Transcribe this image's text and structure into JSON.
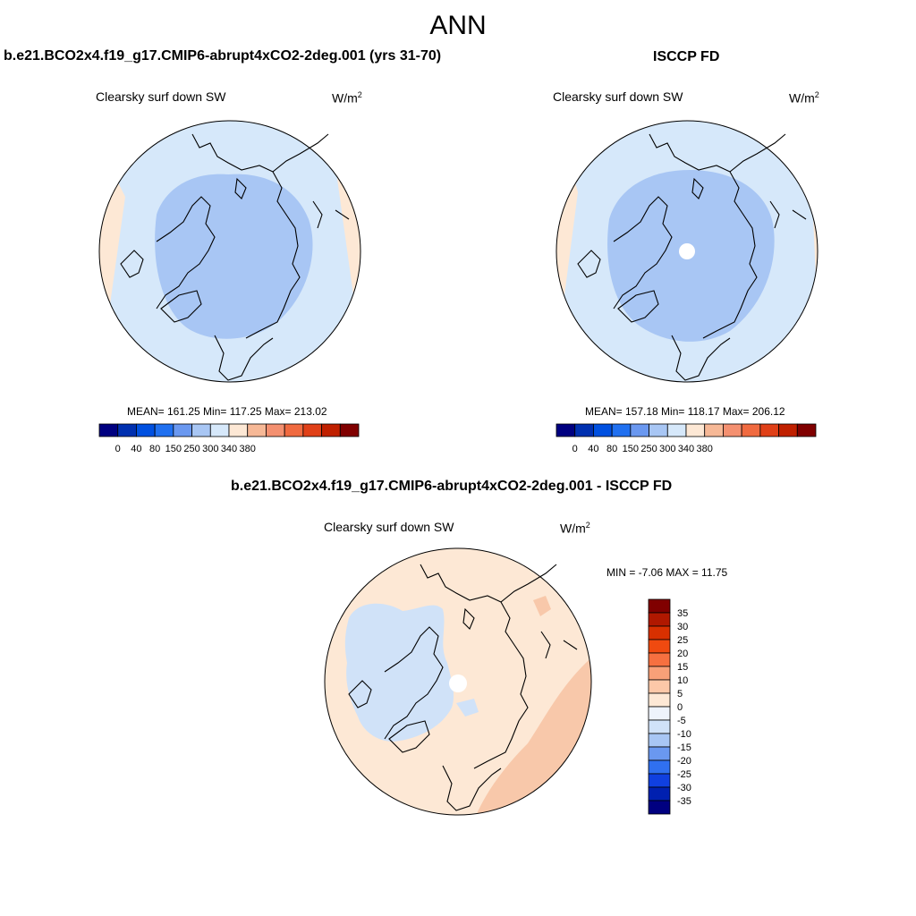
{
  "page": {
    "title": "ANN",
    "left_title": "b.e21.BCO2x4.f19_g17.CMIP6-abrupt4xCO2-2deg.001 (yrs 31-70)",
    "right_title": "ISCCP FD",
    "diff_title": "b.e21.BCO2x4.f19_g17.CMIP6-abrupt4xCO2-2deg.001 - ISCCP FD"
  },
  "chart_data": [
    {
      "type": "heatmap",
      "projection": "north-polar-stereographic",
      "variable": "Clearsky surf down SW",
      "units_base": "W/m",
      "units_exp": "2",
      "stats_text": "MEAN= 161.25  Min= 117.25  Max= 213.02",
      "mean": 161.25,
      "min": 117.25,
      "max": 213.02,
      "colorbar": {
        "orientation": "horizontal",
        "tick_labels": [
          "0",
          "40",
          "80",
          "150",
          "250",
          "300",
          "340",
          "380"
        ],
        "colors": [
          "#000080",
          "#0030b0",
          "#0050e0",
          "#2070f0",
          "#6a98f0",
          "#a8c6f4",
          "#d6e8fa",
          "#fde8d5",
          "#f6b896",
          "#f49070",
          "#f06a40",
          "#e04018",
          "#c02000",
          "#800000"
        ]
      },
      "regions": [
        {
          "name": "ocean-background",
          "fill": "#d6e8fa"
        },
        {
          "name": "arctic-core",
          "fill": "#a8c6f4"
        },
        {
          "name": "low-latitude-rim",
          "fill": "#fde8d5"
        }
      ]
    },
    {
      "type": "heatmap",
      "projection": "north-polar-stereographic",
      "variable": "Clearsky surf down SW",
      "units_base": "W/m",
      "units_exp": "2",
      "stats_text": "MEAN= 157.18  Min= 118.17  Max= 206.12",
      "mean": 157.18,
      "min": 118.17,
      "max": 206.12,
      "colorbar": {
        "orientation": "horizontal",
        "tick_labels": [
          "0",
          "40",
          "80",
          "150",
          "250",
          "300",
          "340",
          "380"
        ],
        "colors": [
          "#000080",
          "#0030b0",
          "#0050e0",
          "#2070f0",
          "#6a98f0",
          "#a8c6f4",
          "#d6e8fa",
          "#fde8d5",
          "#f6b896",
          "#f49070",
          "#f06a40",
          "#e04018",
          "#c02000",
          "#800000"
        ]
      },
      "regions": [
        {
          "name": "ocean-background",
          "fill": "#d6e8fa"
        },
        {
          "name": "arctic-core",
          "fill": "#a8c6f4"
        },
        {
          "name": "missing-pole",
          "fill": "#ffffff"
        },
        {
          "name": "low-latitude-rim",
          "fill": "#fde8d5"
        }
      ]
    },
    {
      "type": "heatmap",
      "projection": "north-polar-stereographic",
      "variable": "Clearsky surf down SW",
      "units_base": "W/m",
      "units_exp": "2",
      "stats_text": "MIN =  -7.06 MAX =  11.75",
      "min": -7.06,
      "max": 11.75,
      "colorbar": {
        "orientation": "vertical",
        "tick_labels": [
          "35",
          "30",
          "25",
          "20",
          "15",
          "10",
          "5",
          "0",
          "-5",
          "-10",
          "-15",
          "-20",
          "-25",
          "-30",
          "-35"
        ],
        "colors": [
          "#800000",
          "#b01800",
          "#d83000",
          "#f04a10",
          "#f67040",
          "#f8a078",
          "#fcc8a8",
          "#fde8d5",
          "#eef3fb",
          "#d0e2f8",
          "#a8c6f4",
          "#6a98f0",
          "#3070f0",
          "#1040e0",
          "#0020b0",
          "#000080"
        ]
      },
      "regions": [
        {
          "name": "positive-background",
          "fill": "#fde8d5"
        },
        {
          "name": "negative-greenland-canada",
          "fill": "#d0e2f8"
        },
        {
          "name": "strong-positive-asia",
          "fill": "#f8c8aa"
        },
        {
          "name": "missing-pole",
          "fill": "#ffffff"
        }
      ]
    }
  ]
}
